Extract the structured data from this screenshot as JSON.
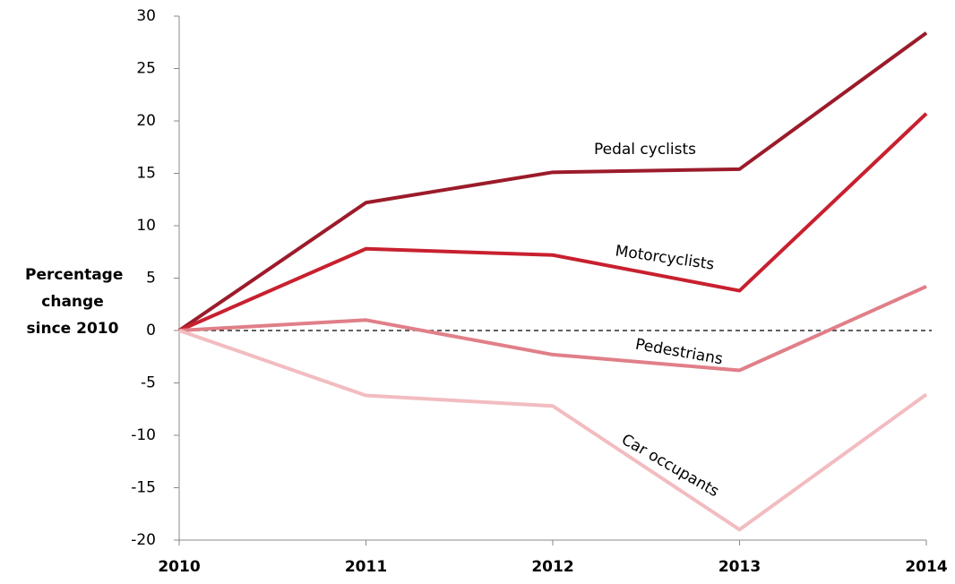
{
  "chart_data": {
    "type": "line",
    "y_label": "Percentage change since 2010",
    "categories": [
      "2010",
      "2011",
      "2012",
      "2013",
      "2014"
    ],
    "series": [
      {
        "name": "Pedal cyclists",
        "color": "#9b1b2a",
        "values": [
          0,
          12.2,
          15.1,
          15.4,
          28.4
        ]
      },
      {
        "name": "Motorcyclists",
        "color": "#c8202f",
        "values": [
          0,
          7.8,
          7.2,
          3.8,
          20.7
        ]
      },
      {
        "name": "Pedestrians",
        "color": "#e07f88",
        "values": [
          0,
          1.0,
          -2.3,
          -3.8,
          4.2
        ]
      },
      {
        "name": "Car occupants",
        "color": "#f2bcc0",
        "values": [
          0,
          -6.2,
          -7.2,
          -19.0,
          -6.1
        ]
      }
    ],
    "ylim": [
      -20,
      30
    ],
    "yticks": [
      -20,
      -15,
      -10,
      -5,
      0,
      5,
      10,
      15,
      20,
      25,
      30
    ],
    "grid": false
  }
}
